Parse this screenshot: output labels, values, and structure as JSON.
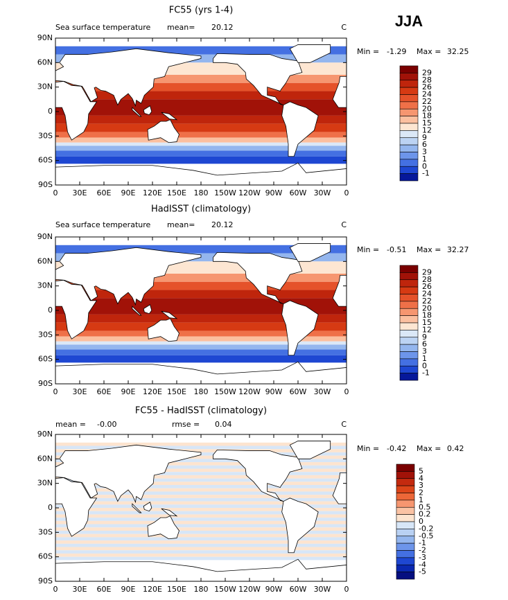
{
  "season": "JJA",
  "lat_ticks": [
    "90N",
    "60N",
    "30N",
    "0",
    "30S",
    "60S",
    "90S"
  ],
  "lon_ticks": [
    "0",
    "30E",
    "60E",
    "90E",
    "120E",
    "150E",
    "180",
    "150W",
    "120W",
    "90W",
    "60W",
    "30W",
    "0"
  ],
  "palettes": {
    "sst": [
      "#7a0000",
      "#a11208",
      "#bf250c",
      "#d63a13",
      "#e5522a",
      "#ef7048",
      "#f69670",
      "#fbbf9f",
      "#fde6d2",
      "#dbe8f7",
      "#bcd3f3",
      "#94b6ee",
      "#6d95ea",
      "#4470e2",
      "#1e47d2",
      "#06189a"
    ],
    "diff": [
      "#7a0000",
      "#a11208",
      "#c42a0f",
      "#dc4519",
      "#ec6738",
      "#f69670",
      "#fbc3a4",
      "#fde4cf",
      "#d7e6f7",
      "#b9d1f3",
      "#94b6ee",
      "#6d95ea",
      "#4470e2",
      "#1e47d2",
      "#0a28b0",
      "#050f80"
    ]
  },
  "panels": [
    {
      "title": "FC55 (yrs 1-4)",
      "left_label": "Sea surface temperature",
      "stat1_label": "mean=",
      "stat1": "20.12",
      "units": "C",
      "min_label": "Min =",
      "min": "-1.29",
      "max_label": "Max =",
      "max": "32.25",
      "palette": "sst",
      "colorbar_labels": [
        "29",
        "28",
        "26",
        "24",
        "22",
        "20",
        "18",
        "15",
        "12",
        "9",
        "6",
        "3",
        "1",
        "0",
        "-1"
      ]
    },
    {
      "title": "HadISST (climatology)",
      "left_label": "Sea surface temperature",
      "stat1_label": "mean=",
      "stat1": "20.12",
      "units": "C",
      "min_label": "Min =",
      "min": "-0.51",
      "max_label": "Max =",
      "max": "32.27",
      "palette": "sst",
      "colorbar_labels": [
        "29",
        "28",
        "26",
        "24",
        "22",
        "20",
        "18",
        "15",
        "12",
        "9",
        "6",
        "3",
        "1",
        "0",
        "-1"
      ]
    },
    {
      "title": "FC55 - HadISST (climatology)",
      "stat1_label": "mean =",
      "stat1": "-0.00",
      "stat2_label": "rmse =",
      "stat2": "0.04",
      "units": "C",
      "min_label": "Min =",
      "min": "-0.42",
      "max_label": "Max =",
      "max": "0.42",
      "palette": "diff",
      "colorbar_labels": [
        "5",
        "4",
        "3",
        "2",
        "1",
        "0.5",
        "0.2",
        "0",
        "-0.2",
        "-0.5",
        "-1",
        "-2",
        "-3",
        "-4",
        "-5"
      ]
    }
  ]
}
